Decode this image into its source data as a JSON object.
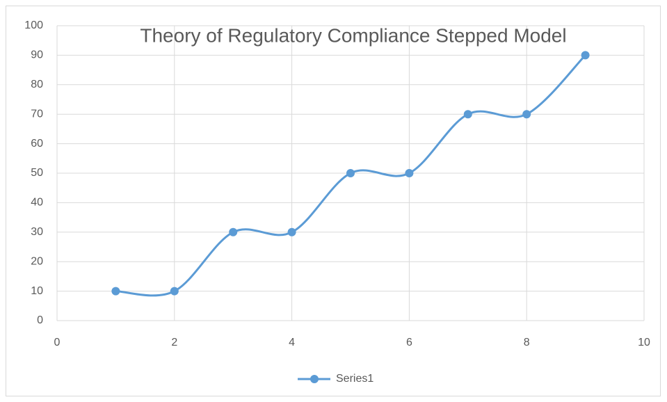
{
  "chart_data": {
    "type": "line",
    "smooth": true,
    "title": "Theory of Regulatory Compliance Stepped Model",
    "x": [
      1,
      2,
      3,
      4,
      5,
      6,
      7,
      8,
      9
    ],
    "series": [
      {
        "name": "Series1",
        "color": "#5b9bd5",
        "values": [
          10,
          10,
          30,
          30,
          50,
          50,
          70,
          70,
          90
        ]
      }
    ],
    "xlim": [
      0,
      10
    ],
    "xticks": [
      0,
      2,
      4,
      6,
      8,
      10
    ],
    "ylim": [
      0,
      100
    ],
    "yticks": [
      0,
      10,
      20,
      30,
      40,
      50,
      60,
      70,
      80,
      90,
      100
    ],
    "grid": true,
    "legend": "bottom"
  }
}
